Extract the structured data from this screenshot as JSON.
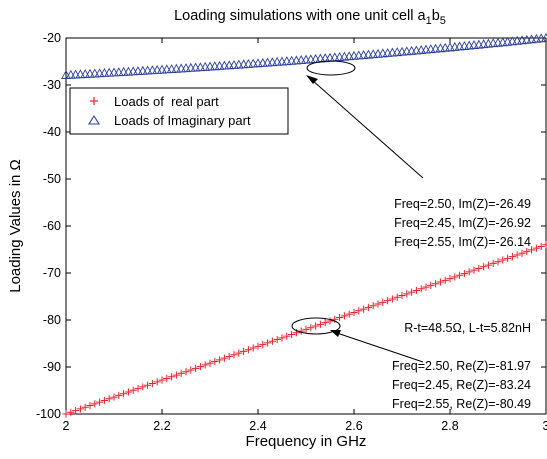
{
  "chart_data": {
    "type": "scatter",
    "title_main": "Loading simulations with one unit cell a",
    "title_sub1": "1",
    "title_mid": "b",
    "title_sub2": "5",
    "xlabel": "Frequency in GHz",
    "ylabel": "Loading Values in Ω",
    "xlim": [
      2,
      3
    ],
    "ylim": [
      -100,
      -20
    ],
    "x_ticks": [
      "2",
      "2.2",
      "2.4",
      "2.6",
      "2.8",
      "3"
    ],
    "y_ticks": [
      "-20",
      "-30",
      "-40",
      "-50",
      "-60",
      "-70",
      "-80",
      "-90",
      "-100"
    ],
    "grid": false,
    "legend_position": "top-left",
    "series": [
      {
        "name": "Loads of  real part",
        "marker": "plus",
        "color": "#e8202a",
        "x_start": 2.0,
        "x_end": 3.0,
        "x_step": 0.01,
        "y_start": -100.0,
        "y_end": -64.0,
        "sample_points": [
          [
            2.45,
            -83.24
          ],
          [
            2.5,
            -81.97
          ],
          [
            2.55,
            -80.49
          ]
        ]
      },
      {
        "name": "Loads of Imaginary part",
        "marker": "triangle",
        "color": "#2a3f9a",
        "x_start": 2.0,
        "x_end": 3.0,
        "x_step": 0.01,
        "y_start": -27.9,
        "y_end": -20.0,
        "sample_points": [
          [
            2.45,
            -26.92
          ],
          [
            2.5,
            -26.49
          ],
          [
            2.55,
            -26.14
          ]
        ]
      }
    ],
    "annotations": {
      "imag": [
        "Freq=2.50, Im(Z)=-26.49",
        "Freq=2.45, Im(Z)=-26.92",
        "Freq=2.55, Im(Z)=-26.14"
      ],
      "rl": "R-t=48.5Ω, L-t=5.82nH",
      "real": [
        "Freq=2.50, Re(Z)=-81.97",
        "Freq=2.45, Re(Z)=-83.24",
        "Freq=2.55, Re(Z)=-80.49"
      ]
    }
  }
}
